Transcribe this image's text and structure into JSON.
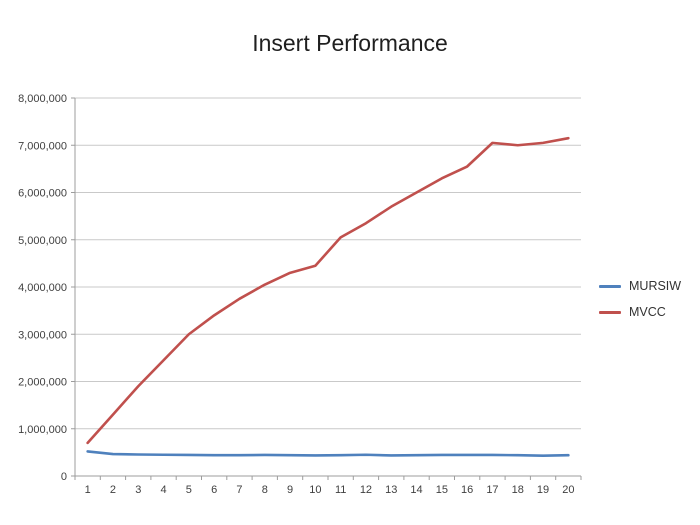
{
  "chart_data": {
    "type": "line",
    "title": "Insert Performance",
    "categories": [
      "1",
      "2",
      "3",
      "4",
      "5",
      "6",
      "7",
      "8",
      "9",
      "10",
      "11",
      "12",
      "13",
      "14",
      "15",
      "16",
      "17",
      "18",
      "19",
      "20"
    ],
    "series": [
      {
        "name": "MURSIW",
        "color": "#4F81BD",
        "values": [
          520000,
          465000,
          455000,
          450000,
          445000,
          440000,
          440000,
          445000,
          440000,
          435000,
          440000,
          450000,
          435000,
          440000,
          445000,
          445000,
          445000,
          440000,
          430000,
          440000
        ]
      },
      {
        "name": "MVCC",
        "color": "#C0504D",
        "values": [
          700000,
          1300000,
          1900000,
          2450000,
          3000000,
          3400000,
          3750000,
          4050000,
          4300000,
          4450000,
          5050000,
          5350000,
          5700000,
          6000000,
          6300000,
          6550000,
          7050000,
          7000000,
          7050000,
          7150000
        ]
      }
    ],
    "ylim": [
      0,
      8000000
    ],
    "ytick_step": 1000000,
    "ytick_labels": [
      "0",
      "1,000,000",
      "2,000,000",
      "3,000,000",
      "4,000,000",
      "5,000,000",
      "6,000,000",
      "7,000,000",
      "8,000,000"
    ],
    "grid": true,
    "legend_position": "right"
  },
  "style": {
    "grid_color": "#c9c9c9",
    "axis_color": "#9c9c9c",
    "tick_label_color": "#404040",
    "title_color": "#1f1f1f"
  }
}
